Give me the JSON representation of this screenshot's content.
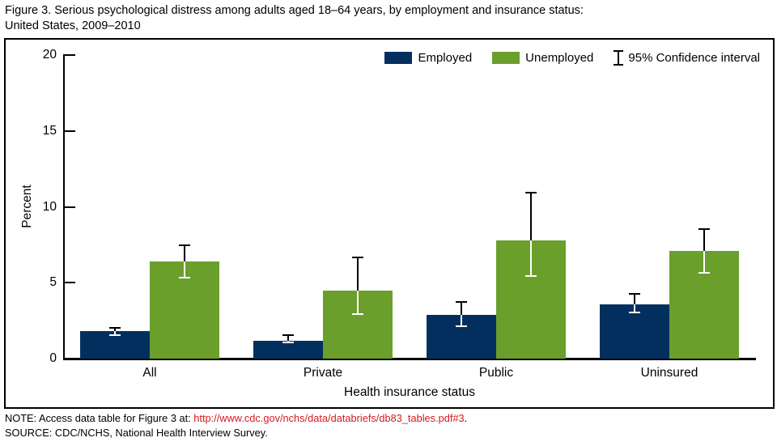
{
  "title": {
    "line1": "Figure 3. Serious psychological distress among adults aged 18–64 years, by employment and insurance status:",
    "line2": "United States, 2009–2010"
  },
  "legend": {
    "employed": "Employed",
    "unemployed": "Unemployed",
    "ci": "95% Confidence interval"
  },
  "colors": {
    "employed": "#032F5E",
    "unemployed": "#6A9F2C",
    "link": "#D6191F",
    "axis": "#000000"
  },
  "chart_data": {
    "type": "bar",
    "title": "Serious psychological distress among adults aged 18–64 years, by employment and insurance status: United States, 2009–2010",
    "categories": [
      "All",
      "Private",
      "Public",
      "Uninsured"
    ],
    "series": [
      {
        "name": "Employed",
        "color": "#032F5E",
        "values": [
          1.8,
          1.2,
          2.9,
          3.6
        ],
        "ci_low": [
          1.5,
          1.0,
          2.1,
          3.0
        ],
        "ci_high": [
          2.1,
          1.6,
          3.8,
          4.3
        ]
      },
      {
        "name": "Unemployed",
        "color": "#6A9F2C",
        "values": [
          6.4,
          4.5,
          7.8,
          7.1
        ],
        "ci_low": [
          5.3,
          2.9,
          5.4,
          5.6
        ],
        "ci_high": [
          7.5,
          6.7,
          11.0,
          8.6
        ]
      }
    ],
    "xlabel": "Health insurance status",
    "ylabel": "Percent",
    "ylim": [
      0,
      20
    ],
    "yticks": [
      0,
      5,
      10,
      15,
      20
    ],
    "grid": false,
    "legend_position": "top-right",
    "error_bars": "95% confidence interval"
  },
  "footer": {
    "note_prefix": "NOTE: Access data table for Figure 3 at: ",
    "note_link": "http://www.cdc.gov/nchs/data/databriefs/db83_tables.pdf#3",
    "note_suffix": ".",
    "source": "SOURCE: CDC/NCHS, National Health Interview Survey."
  }
}
